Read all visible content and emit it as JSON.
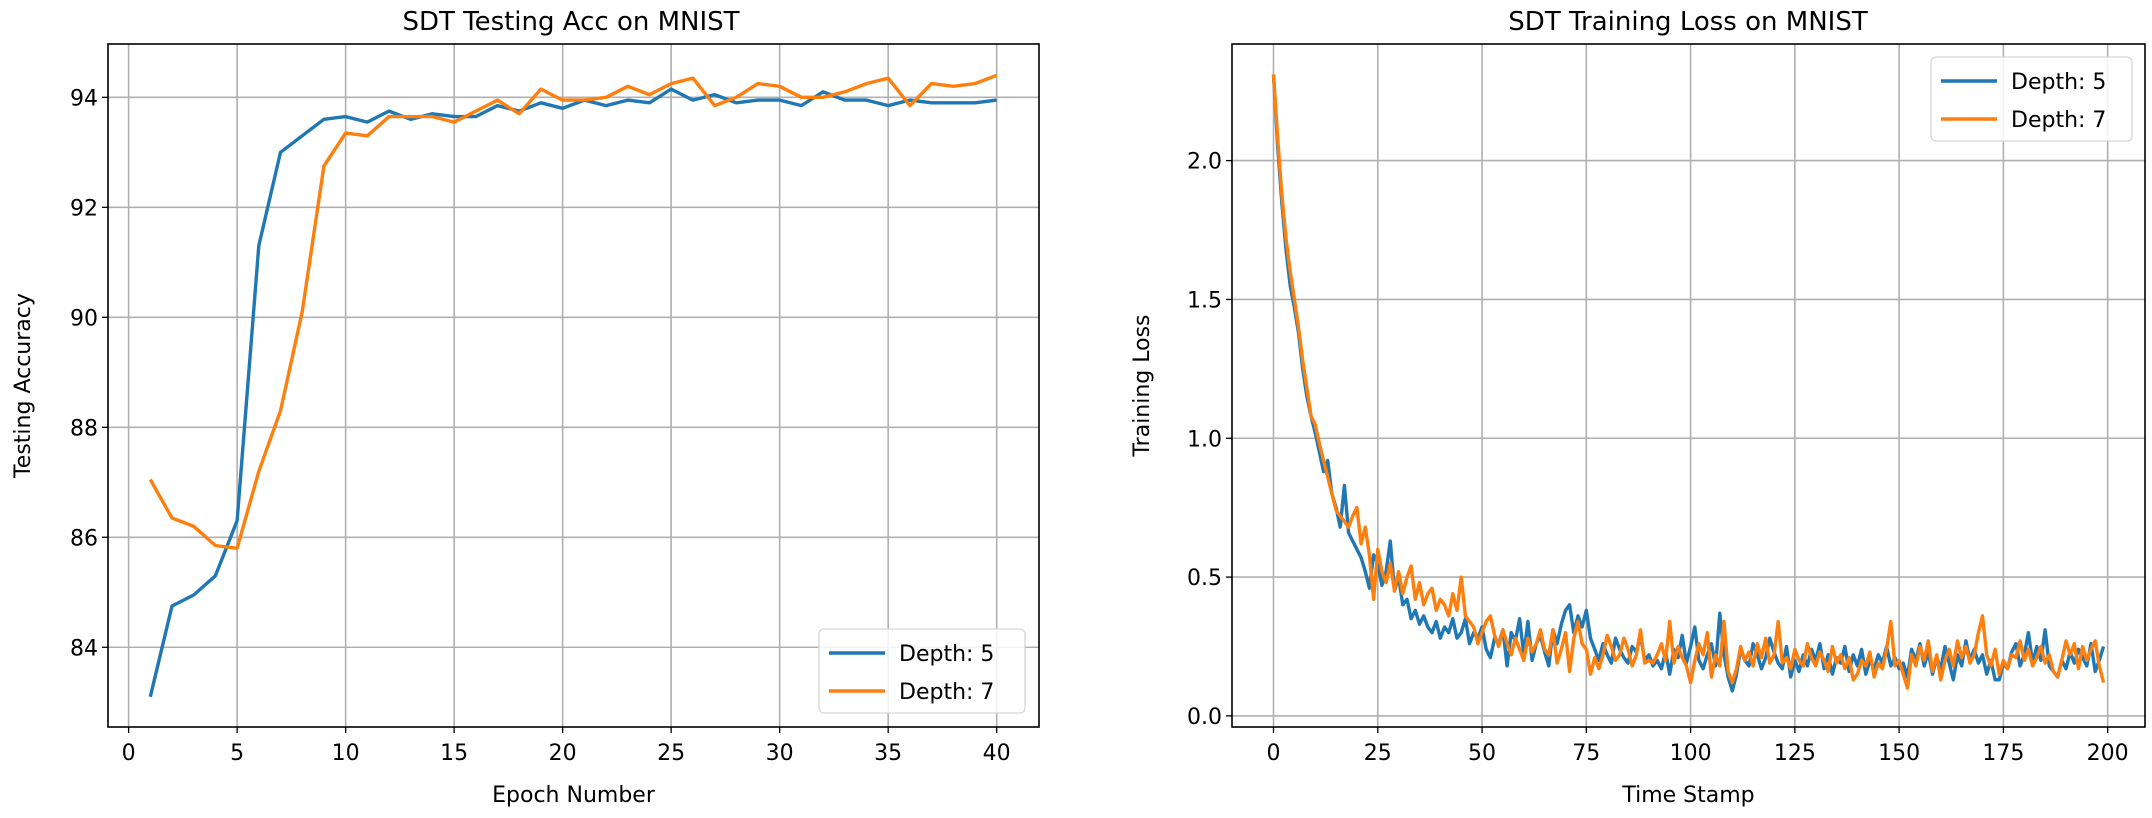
{
  "colors": {
    "depth5": "#1f77b4",
    "depth7": "#ff7f0e",
    "grid": "#b0b0b0"
  },
  "chart_data": [
    {
      "type": "line",
      "title": "SDT Testing Acc on MNIST",
      "xlabel": "Epoch Number",
      "ylabel": "Testing Accuracy",
      "xlim": [
        -0.95,
        41.95
      ],
      "ylim": [
        82.55,
        94.97
      ],
      "xticks": [
        0,
        5,
        10,
        15,
        20,
        25,
        30,
        35,
        40
      ],
      "yticks": [
        84,
        86,
        88,
        90,
        92,
        94
      ],
      "grid": true,
      "legend_position": "lower-right",
      "x": [
        1,
        2,
        3,
        4,
        5,
        6,
        7,
        8,
        9,
        10,
        11,
        12,
        13,
        14,
        15,
        16,
        17,
        18,
        19,
        20,
        21,
        22,
        23,
        24,
        25,
        26,
        27,
        28,
        29,
        30,
        31,
        32,
        33,
        34,
        35,
        36,
        37,
        38,
        39,
        40
      ],
      "series": [
        {
          "name": "Depth: 5",
          "color": "#1f77b4",
          "values": [
            83.1,
            84.75,
            84.95,
            85.3,
            86.3,
            91.3,
            93.0,
            93.3,
            93.6,
            93.65,
            93.55,
            93.75,
            93.6,
            93.7,
            93.65,
            93.65,
            93.85,
            93.75,
            93.9,
            93.8,
            93.95,
            93.85,
            93.95,
            93.9,
            94.15,
            93.95,
            94.05,
            93.9,
            93.95,
            93.95,
            93.85,
            94.1,
            93.95,
            93.95,
            93.85,
            93.95,
            93.9,
            93.9,
            93.9,
            93.95
          ]
        },
        {
          "name": "Depth: 7",
          "color": "#ff7f0e",
          "values": [
            87.05,
            86.35,
            86.2,
            85.85,
            85.8,
            87.2,
            88.3,
            90.1,
            92.75,
            93.35,
            93.3,
            93.65,
            93.65,
            93.65,
            93.55,
            93.75,
            93.95,
            93.7,
            94.15,
            93.95,
            93.95,
            94.0,
            94.2,
            94.05,
            94.25,
            94.35,
            93.85,
            94.0,
            94.25,
            94.2,
            94.0,
            94.0,
            94.1,
            94.25,
            94.35,
            93.85,
            94.25,
            94.2,
            94.25,
            94.4
          ]
        }
      ]
    },
    {
      "type": "line",
      "title": "SDT Training Loss on MNIST",
      "xlabel": "Time Stamp",
      "ylabel": "Training Loss",
      "xlim": [
        -9.95,
        208.95
      ],
      "ylim": [
        -0.04,
        2.42
      ],
      "xticks": [
        0,
        25,
        50,
        75,
        100,
        125,
        150,
        175,
        200
      ],
      "yticks": [
        0.0,
        0.5,
        1.0,
        1.5,
        2.0
      ],
      "ytick_labels": [
        "0.0",
        "0.5",
        "1.0",
        "1.5",
        "2.0"
      ],
      "grid": true,
      "legend_position": "upper-right",
      "x_start": 0,
      "series": [
        {
          "name": "Depth: 5",
          "color": "#1f77b4",
          "values": [
            2.31,
            2.05,
            1.85,
            1.68,
            1.55,
            1.47,
            1.38,
            1.25,
            1.15,
            1.08,
            1.02,
            0.95,
            0.88,
            0.92,
            0.8,
            0.75,
            0.68,
            0.83,
            0.66,
            0.63,
            0.6,
            0.57,
            0.52,
            0.46,
            0.58,
            0.55,
            0.47,
            0.52,
            0.63,
            0.45,
            0.5,
            0.4,
            0.42,
            0.35,
            0.38,
            0.33,
            0.36,
            0.32,
            0.3,
            0.34,
            0.28,
            0.32,
            0.3,
            0.35,
            0.28,
            0.3,
            0.35,
            0.26,
            0.3,
            0.28,
            0.32,
            0.24,
            0.21,
            0.28,
            0.26,
            0.31,
            0.18,
            0.3,
            0.27,
            0.35,
            0.22,
            0.34,
            0.2,
            0.26,
            0.29,
            0.23,
            0.18,
            0.31,
            0.26,
            0.33,
            0.38,
            0.4,
            0.3,
            0.36,
            0.32,
            0.38,
            0.28,
            0.24,
            0.2,
            0.26,
            0.22,
            0.19,
            0.28,
            0.24,
            0.21,
            0.19,
            0.25,
            0.23,
            0.29,
            0.2,
            0.22,
            0.18,
            0.2,
            0.17,
            0.23,
            0.15,
            0.24,
            0.21,
            0.29,
            0.19,
            0.25,
            0.32,
            0.2,
            0.17,
            0.22,
            0.26,
            0.18,
            0.37,
            0.22,
            0.14,
            0.09,
            0.15,
            0.24,
            0.2,
            0.18,
            0.26,
            0.22,
            0.17,
            0.21,
            0.28,
            0.23,
            0.19,
            0.17,
            0.25,
            0.14,
            0.2,
            0.16,
            0.22,
            0.18,
            0.24,
            0.2,
            0.26,
            0.17,
            0.22,
            0.15,
            0.21,
            0.19,
            0.25,
            0.16,
            0.22,
            0.18,
            0.24,
            0.15,
            0.2,
            0.17,
            0.22,
            0.19,
            0.25,
            0.18,
            0.21,
            0.17,
            0.19,
            0.14,
            0.24,
            0.2,
            0.26,
            0.18,
            0.23,
            0.15,
            0.21,
            0.17,
            0.25,
            0.19,
            0.13,
            0.22,
            0.18,
            0.27,
            0.2,
            0.24,
            0.19,
            0.22,
            0.15,
            0.2,
            0.13,
            0.13,
            0.19,
            0.17,
            0.23,
            0.26,
            0.18,
            0.22,
            0.3,
            0.19,
            0.25,
            0.2,
            0.31,
            0.18,
            0.16,
            0.14,
            0.2,
            0.17,
            0.23,
            0.19,
            0.24,
            0.21,
            0.18,
            0.26,
            0.16,
            0.2,
            0.25
          ]
        },
        {
          "name": "Depth: 7",
          "color": "#ff7f0e",
          "values": [
            2.31,
            2.08,
            1.88,
            1.72,
            1.6,
            1.5,
            1.4,
            1.28,
            1.18,
            1.08,
            1.05,
            0.98,
            0.92,
            0.86,
            0.8,
            0.74,
            0.72,
            0.7,
            0.68,
            0.72,
            0.75,
            0.62,
            0.68,
            0.58,
            0.42,
            0.6,
            0.52,
            0.48,
            0.55,
            0.45,
            0.52,
            0.44,
            0.5,
            0.54,
            0.42,
            0.48,
            0.4,
            0.44,
            0.46,
            0.38,
            0.42,
            0.4,
            0.36,
            0.44,
            0.38,
            0.5,
            0.36,
            0.34,
            0.32,
            0.26,
            0.3,
            0.34,
            0.36,
            0.29,
            0.25,
            0.31,
            0.26,
            0.22,
            0.28,
            0.24,
            0.2,
            0.28,
            0.23,
            0.26,
            0.31,
            0.24,
            0.22,
            0.31,
            0.19,
            0.24,
            0.3,
            0.16,
            0.28,
            0.34,
            0.26,
            0.24,
            0.15,
            0.21,
            0.17,
            0.22,
            0.29,
            0.25,
            0.2,
            0.22,
            0.28,
            0.24,
            0.18,
            0.22,
            0.31,
            0.19,
            0.2,
            0.19,
            0.22,
            0.26,
            0.2,
            0.34,
            0.19,
            0.25,
            0.21,
            0.18,
            0.12,
            0.2,
            0.26,
            0.22,
            0.3,
            0.14,
            0.22,
            0.18,
            0.34,
            0.16,
            0.12,
            0.17,
            0.25,
            0.2,
            0.23,
            0.18,
            0.26,
            0.21,
            0.28,
            0.19,
            0.22,
            0.34,
            0.19,
            0.21,
            0.17,
            0.24,
            0.2,
            0.18,
            0.26,
            0.21,
            0.18,
            0.23,
            0.2,
            0.16,
            0.25,
            0.19,
            0.22,
            0.17,
            0.21,
            0.13,
            0.15,
            0.2,
            0.18,
            0.23,
            0.14,
            0.19,
            0.17,
            0.24,
            0.34,
            0.18,
            0.2,
            0.15,
            0.1,
            0.22,
            0.18,
            0.25,
            0.2,
            0.27,
            0.16,
            0.22,
            0.13,
            0.2,
            0.24,
            0.18,
            0.27,
            0.21,
            0.25,
            0.19,
            0.22,
            0.3,
            0.36,
            0.22,
            0.18,
            0.24,
            0.15,
            0.2,
            0.17,
            0.22,
            0.21,
            0.27,
            0.2,
            0.24,
            0.18,
            0.21,
            0.25,
            0.19,
            0.22,
            0.16,
            0.14,
            0.2,
            0.27,
            0.22,
            0.26,
            0.17,
            0.25,
            0.2,
            0.24,
            0.27,
            0.18,
            0.12
          ]
        }
      ]
    }
  ]
}
